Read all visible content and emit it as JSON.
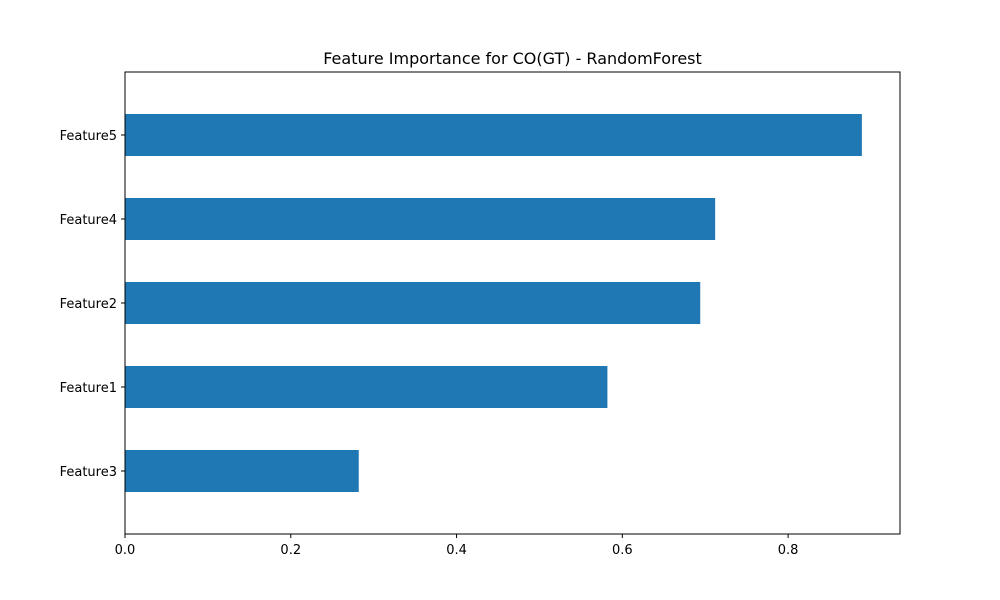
{
  "chart_data": {
    "type": "bar",
    "orientation": "horizontal",
    "title": "Feature Importance for CO(GT) - RandomForest",
    "xlabel": "",
    "ylabel": "",
    "categories": [
      "Feature3",
      "Feature1",
      "Feature2",
      "Feature4",
      "Feature5"
    ],
    "values": [
      0.282,
      0.582,
      0.694,
      0.712,
      0.889
    ],
    "xlim": [
      0.0,
      0.935
    ],
    "xticks": [
      0.0,
      0.2,
      0.4,
      0.6,
      0.8
    ],
    "xtick_labels": [
      "0.0",
      "0.2",
      "0.4",
      "0.6",
      "0.8"
    ],
    "grid": false,
    "bar_color": "#1f77b4"
  }
}
